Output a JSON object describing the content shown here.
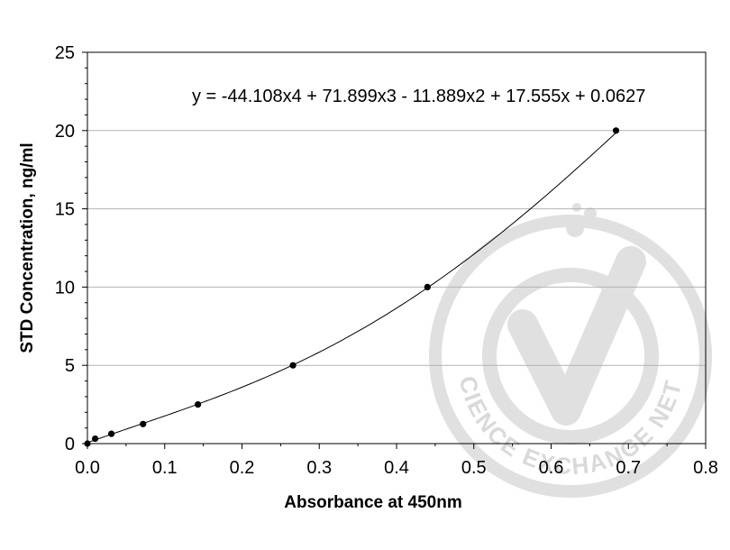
{
  "chart_data": {
    "type": "scatter",
    "title": "",
    "xlabel": "Absorbance at 450nm",
    "ylabel": "STD Concentration, ng/ml",
    "xlim": [
      0,
      0.8
    ],
    "ylim": [
      0,
      25
    ],
    "x_ticks": [
      "0.0",
      "0.1",
      "0.2",
      "0.3",
      "0.4",
      "0.5",
      "0.6",
      "0.7",
      "0.8"
    ],
    "y_ticks": [
      "0",
      "5",
      "10",
      "15",
      "20",
      "25"
    ],
    "grid": "horizontal",
    "legend": "none",
    "trendline": {
      "type": "polynomial",
      "order": 4,
      "equation": "y = -44.108x4 + 71.899x3 - 11.889x2 + 17.555x + 0.0627",
      "coefficients": [
        -44.108,
        71.899,
        -11.889,
        17.555,
        0.0627
      ]
    },
    "series": [
      {
        "x": [
          0.0,
          0.01,
          0.031,
          0.072,
          0.143,
          0.266,
          0.44,
          0.684
        ],
        "y": [
          0.0,
          0.3125,
          0.625,
          1.25,
          2.5,
          5,
          10,
          20
        ]
      }
    ],
    "colors": {
      "points": "#000000",
      "curve": "#000000",
      "grid": "#b3b3b3",
      "watermark": "#e0e0e0"
    }
  },
  "watermark": {
    "text": "THE SCIENCE EXCHANGE NETWORK"
  }
}
